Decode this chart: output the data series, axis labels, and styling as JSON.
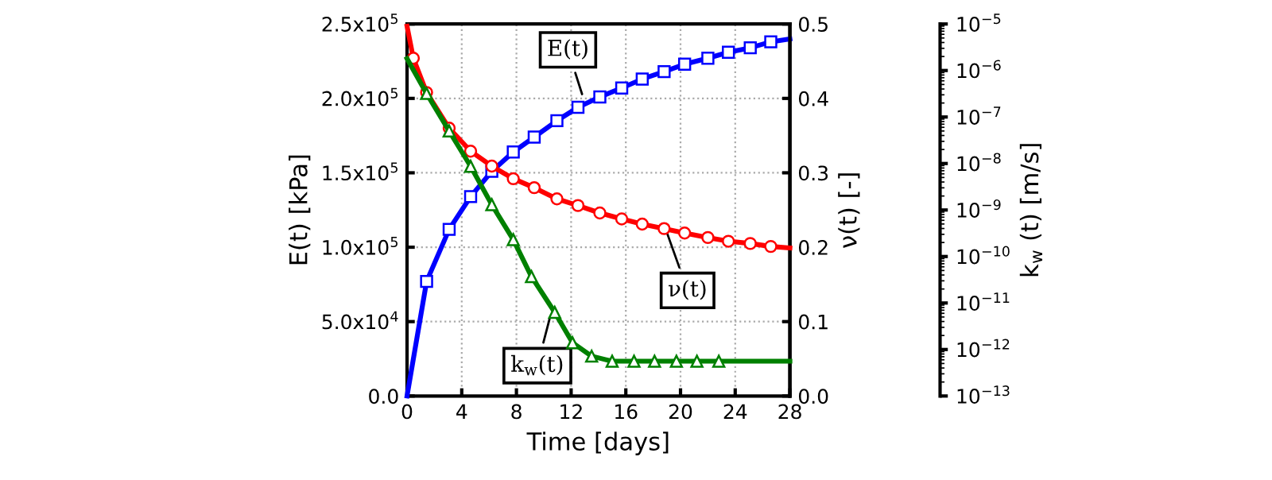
{
  "chart_data": {
    "type": "line",
    "xlabel": "Time [days]",
    "ylabel": "E(t) [kPa]",
    "y2label": "ν(t) [-]",
    "y3label": "k$_{w}$ (t) [m/s]",
    "xlim": [
      0,
      28
    ],
    "xticks": [
      0,
      4,
      8,
      12,
      16,
      20,
      24,
      28
    ],
    "ylim": [
      0,
      250000
    ],
    "yticks": [
      {
        "value": 0,
        "label": "0.0"
      },
      {
        "value": 50000,
        "label": "5.0x10$^{4}$"
      },
      {
        "value": 100000,
        "label": "1.0x10$^{5}$"
      },
      {
        "value": 150000,
        "label": "1.5x10$^{5}$"
      },
      {
        "value": 200000,
        "label": "2.0x10$^{5}$"
      },
      {
        "value": 250000,
        "label": "2.5x10$^{5}$"
      }
    ],
    "y2lim": [
      0,
      0.5
    ],
    "y2ticks": [
      {
        "value": 0,
        "label": "0.0"
      },
      0.1,
      0.2,
      0.3,
      0.4,
      0.5
    ],
    "y3lim": [
      1e-13,
      1e-05
    ],
    "y3ticks": [
      {
        "value": 1e-13,
        "label": "10$^{−13}$"
      },
      {
        "value": 1e-12,
        "label": "10$^{−12}$"
      },
      {
        "value": 1e-11,
        "label": "10$^{−11}$"
      },
      {
        "value": 1e-10,
        "label": "10$^{−10}$"
      },
      {
        "value": 1e-09,
        "label": "10$^{−9}$"
      },
      {
        "value": 1e-08,
        "label": "10$^{−8}$"
      },
      {
        "value": 1e-07,
        "label": "10$^{−7}$"
      },
      {
        "value": 1e-06,
        "label": "10$^{−6}$"
      },
      {
        "value": 1e-05,
        "label": "10$^{−5}$"
      }
    ],
    "log": "y3",
    "grid": true,
    "line_style": "solid",
    "series": [
      {
        "color": "#0000ff",
        "marker": "square",
        "x": [
          0,
          1.43,
          3.08,
          4.65,
          6.2,
          7.77,
          9.3,
          10.96,
          12.5,
          14.1,
          15.7,
          17.2,
          18.8,
          20.3,
          22.0,
          23.5,
          25.1,
          26.6,
          28
        ],
        "values": [
          0,
          77000,
          112000,
          134000,
          151000,
          164000,
          174000,
          185000,
          194000,
          201000,
          207000,
          213000,
          218000,
          223000,
          227000,
          231000,
          234000,
          238000,
          240000
        ]
      },
      {
        "color": "#ff0000",
        "marker": "circle",
        "axis": "y2",
        "x": [
          0,
          0.46,
          1.43,
          3.08,
          4.65,
          6.2,
          7.77,
          9.3,
          10.96,
          12.5,
          14.1,
          15.7,
          17.2,
          18.8,
          20.3,
          22.0,
          23.5,
          25.1,
          26.6,
          28
        ],
        "values": [
          0.497,
          0.454,
          0.408,
          0.36,
          0.329,
          0.309,
          0.292,
          0.28,
          0.265,
          0.256,
          0.246,
          0.238,
          0.231,
          0.225,
          0.219,
          0.213,
          0.208,
          0.205,
          0.201,
          0.199
        ]
      },
      {
        "color": "#008000",
        "marker": "triangle",
        "axis": "y3",
        "x": [
          0,
          1.43,
          3.08,
          4.65,
          6.2,
          7.77,
          9.1,
          10.8,
          12.1,
          13.5,
          15.0,
          16.6,
          18.1,
          19.7,
          21.2,
          22.8,
          28
        ],
        "values": [
          1.8e-06,
          3.2e-07,
          5e-08,
          8.7e-09,
          1.3e-09,
          2.3e-10,
          3.7e-11,
          6.3e-12,
          1.4e-12,
          7.2e-13,
          5.6e-13,
          5.6e-13,
          5.6e-13,
          5.6e-13,
          5.6e-13,
          5.6e-13,
          5.6e-13
        ]
      }
    ],
    "annotations": [
      {
        "text": "E(t)",
        "x": 12.9,
        "y": 200000
      },
      {
        "text": "ν(t)",
        "x": 18.9,
        "y": 112500
      },
      {
        "text": "k$_{w}$(t)",
        "x": 10.5,
        "y": 54500
      }
    ]
  }
}
